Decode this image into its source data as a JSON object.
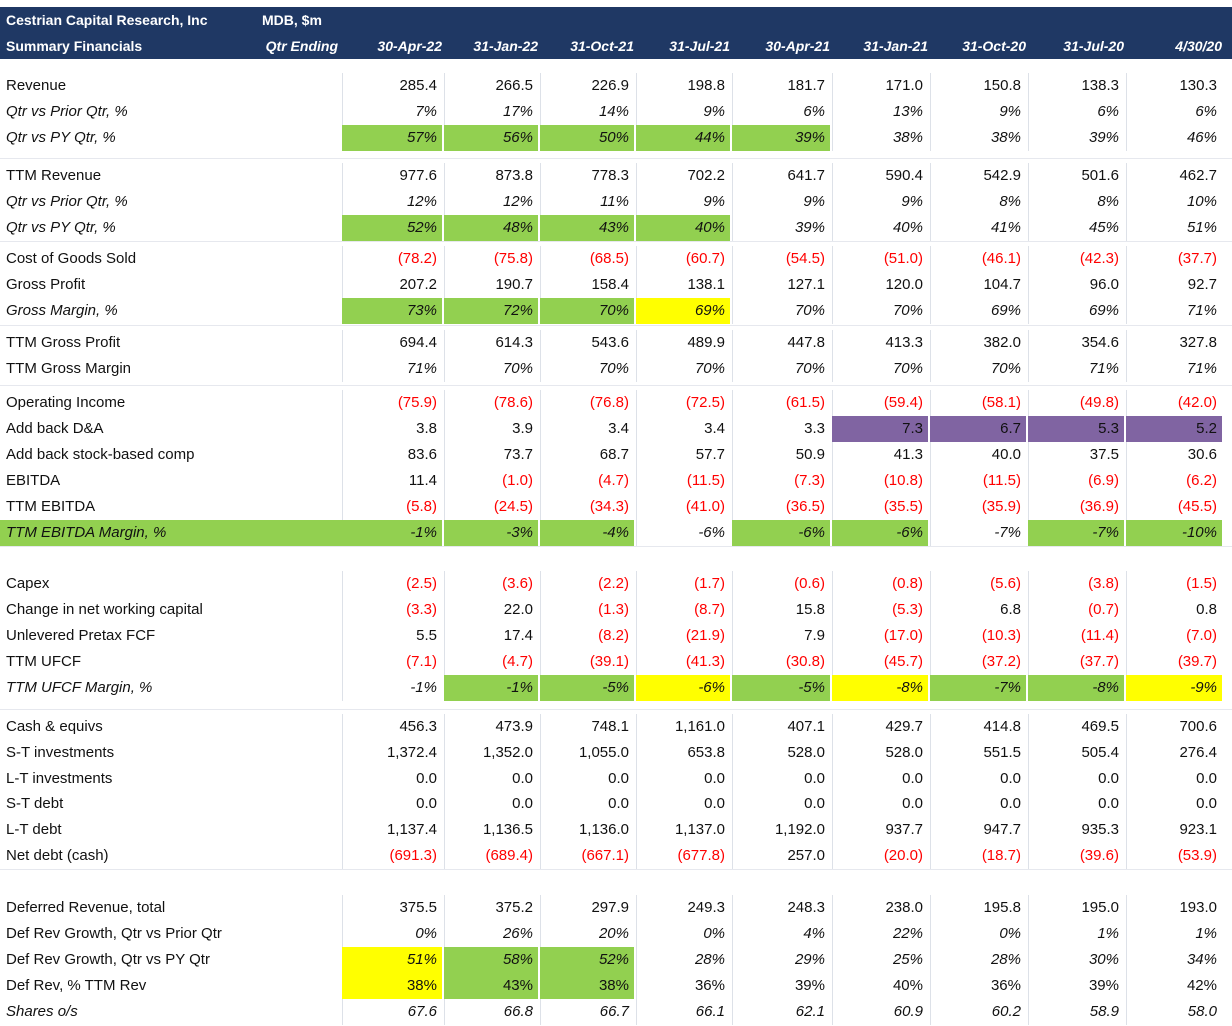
{
  "header": {
    "company": "Cestrian Capital Research, Inc",
    "units": "MDB, $m",
    "subtitle": "Summary Financials",
    "qtr_label": "Qtr Ending",
    "periods": [
      "30-Apr-22",
      "31-Jan-22",
      "31-Oct-21",
      "31-Jul-21",
      "30-Apr-21",
      "31-Jan-21",
      "31-Oct-20",
      "31-Jul-20",
      "4/30/20"
    ]
  },
  "colors": {
    "header_bg": "#1f3864",
    "green": "#92d050",
    "yellow": "#ffff00",
    "purple": "#8064a2",
    "negative": "#ff0000"
  },
  "rows": [
    {
      "label": "Revenue",
      "values": [
        "285.4",
        "266.5",
        "226.9",
        "198.8",
        "181.7",
        "171.0",
        "150.8",
        "138.3",
        "130.3"
      ]
    },
    {
      "label": "Qtr vs Prior Qtr, %",
      "italic": true,
      "values": [
        "7%",
        "17%",
        "14%",
        "9%",
        "6%",
        "13%",
        "9%",
        "6%",
        "6%"
      ]
    },
    {
      "label": "Qtr vs PY Qtr, %",
      "italic": true,
      "values": [
        "57%",
        "56%",
        "50%",
        "44%",
        "39%",
        "38%",
        "38%",
        "39%",
        "46%"
      ],
      "fills": [
        "green",
        "green",
        "green",
        "green",
        "green",
        "",
        "",
        "",
        ""
      ]
    },
    {
      "label": "TTM Revenue",
      "values": [
        "977.6",
        "873.8",
        "778.3",
        "702.2",
        "641.7",
        "590.4",
        "542.9",
        "501.6",
        "462.7"
      ]
    },
    {
      "label": "Qtr vs Prior Qtr, %",
      "italic": true,
      "values": [
        "12%",
        "12%",
        "11%",
        "9%",
        "9%",
        "9%",
        "8%",
        "8%",
        "10%"
      ]
    },
    {
      "label": "Qtr vs PY Qtr, %",
      "italic": true,
      "values": [
        "52%",
        "48%",
        "43%",
        "40%",
        "39%",
        "40%",
        "41%",
        "45%",
        "51%"
      ],
      "fills": [
        "green",
        "green",
        "green",
        "green",
        "",
        "",
        "",
        "",
        ""
      ]
    },
    {
      "label": "Cost of Goods Sold",
      "values": [
        "(78.2)",
        "(75.8)",
        "(68.5)",
        "(60.7)",
        "(54.5)",
        "(51.0)",
        "(46.1)",
        "(42.3)",
        "(37.7)"
      ]
    },
    {
      "label": "Gross Profit",
      "values": [
        "207.2",
        "190.7",
        "158.4",
        "138.1",
        "127.1",
        "120.0",
        "104.7",
        "96.0",
        "92.7"
      ]
    },
    {
      "label": "Gross Margin, %",
      "italic": true,
      "values": [
        "73%",
        "72%",
        "70%",
        "69%",
        "70%",
        "70%",
        "69%",
        "69%",
        "71%"
      ],
      "fills": [
        "green",
        "green",
        "green",
        "yellow",
        "",
        "",
        "",
        "",
        ""
      ]
    },
    {
      "label": "TTM Gross Profit",
      "values": [
        "694.4",
        "614.3",
        "543.6",
        "489.9",
        "447.8",
        "413.3",
        "382.0",
        "354.6",
        "327.8"
      ]
    },
    {
      "label": "TTM Gross Margin",
      "values": [
        "71%",
        "70%",
        "70%",
        "70%",
        "70%",
        "70%",
        "70%",
        "71%",
        "71%"
      ],
      "italic_values": true
    },
    {
      "label": "Operating Income",
      "values": [
        "(75.9)",
        "(78.6)",
        "(76.8)",
        "(72.5)",
        "(61.5)",
        "(59.4)",
        "(58.1)",
        "(49.8)",
        "(42.0)"
      ]
    },
    {
      "label": "Add back D&A",
      "values": [
        "3.8",
        "3.9",
        "3.4",
        "3.4",
        "3.3",
        "7.3",
        "6.7",
        "5.3",
        "5.2"
      ],
      "fills": [
        "",
        "",
        "",
        "",
        "",
        "purple",
        "purple",
        "purple",
        "purple"
      ]
    },
    {
      "label": "Add back stock-based comp",
      "values": [
        "83.6",
        "73.7",
        "68.7",
        "57.7",
        "50.9",
        "41.3",
        "40.0",
        "37.5",
        "30.6"
      ]
    },
    {
      "label": "EBITDA",
      "values": [
        "11.4",
        "(1.0)",
        "(4.7)",
        "(11.5)",
        "(7.3)",
        "(10.8)",
        "(11.5)",
        "(6.9)",
        "(6.2)"
      ]
    },
    {
      "label": "TTM EBITDA",
      "values": [
        "(5.8)",
        "(24.5)",
        "(34.3)",
        "(41.0)",
        "(36.5)",
        "(35.5)",
        "(35.9)",
        "(36.9)",
        "(45.5)"
      ]
    },
    {
      "label": "TTM EBITDA Margin, %",
      "italic": true,
      "values": [
        "-1%",
        "-3%",
        "-4%",
        "-6%",
        "-6%",
        "-6%",
        "-7%",
        "-7%",
        "-10%"
      ],
      "fills": [
        "green",
        "green",
        "green",
        "",
        "green",
        "green",
        "",
        "green",
        "green"
      ],
      "label_fill": "green"
    },
    {
      "label": "Capex",
      "values": [
        "(2.5)",
        "(3.6)",
        "(2.2)",
        "(1.7)",
        "(0.6)",
        "(0.8)",
        "(5.6)",
        "(3.8)",
        "(1.5)"
      ]
    },
    {
      "label": "Change in net working capital",
      "values": [
        "(3.3)",
        "22.0",
        "(1.3)",
        "(8.7)",
        "15.8",
        "(5.3)",
        "6.8",
        "(0.7)",
        "0.8"
      ]
    },
    {
      "label": "Unlevered Pretax FCF",
      "values": [
        "5.5",
        "17.4",
        "(8.2)",
        "(21.9)",
        "7.9",
        "(17.0)",
        "(10.3)",
        "(11.4)",
        "(7.0)"
      ]
    },
    {
      "label": "TTM UFCF",
      "values": [
        "(7.1)",
        "(4.7)",
        "(39.1)",
        "(41.3)",
        "(30.8)",
        "(45.7)",
        "(37.2)",
        "(37.7)",
        "(39.7)"
      ]
    },
    {
      "label": "TTM UFCF Margin, %",
      "italic": true,
      "values": [
        "-1%",
        "-1%",
        "-5%",
        "-6%",
        "-5%",
        "-8%",
        "-7%",
        "-8%",
        "-9%"
      ],
      "fills": [
        "",
        "green",
        "green",
        "yellow",
        "green",
        "yellow",
        "green",
        "green",
        "yellow"
      ]
    },
    {
      "label": "Cash & equivs",
      "values": [
        "456.3",
        "473.9",
        "748.1",
        "1,161.0",
        "407.1",
        "429.7",
        "414.8",
        "469.5",
        "700.6"
      ]
    },
    {
      "label": "S-T investments",
      "values": [
        "1,372.4",
        "1,352.0",
        "1,055.0",
        "653.8",
        "528.0",
        "528.0",
        "551.5",
        "505.4",
        "276.4"
      ]
    },
    {
      "label": "L-T investments",
      "values": [
        "0.0",
        "0.0",
        "0.0",
        "0.0",
        "0.0",
        "0.0",
        "0.0",
        "0.0",
        "0.0"
      ]
    },
    {
      "label": "S-T debt",
      "values": [
        "0.0",
        "0.0",
        "0.0",
        "0.0",
        "0.0",
        "0.0",
        "0.0",
        "0.0",
        "0.0"
      ]
    },
    {
      "label": "L-T debt",
      "values": [
        "1,137.4",
        "1,136.5",
        "1,136.0",
        "1,137.0",
        "1,192.0",
        "937.7",
        "947.7",
        "935.3",
        "923.1"
      ]
    },
    {
      "label": "Net debt (cash)",
      "values": [
        "(691.3)",
        "(689.4)",
        "(667.1)",
        "(677.8)",
        "257.0",
        "(20.0)",
        "(18.7)",
        "(39.6)",
        "(53.9)"
      ]
    },
    {
      "label": "Deferred Revenue, total",
      "values": [
        "375.5",
        "375.2",
        "297.9",
        "249.3",
        "248.3",
        "238.0",
        "195.8",
        "195.0",
        "193.0"
      ]
    },
    {
      "label": "Def Rev Growth, Qtr vs Prior Qtr",
      "values": [
        "0%",
        "26%",
        "20%",
        "0%",
        "4%",
        "22%",
        "0%",
        "1%",
        "1%"
      ],
      "italic_values": true
    },
    {
      "label": "Def Rev Growth, Qtr vs PY Qtr",
      "values": [
        "51%",
        "58%",
        "52%",
        "28%",
        "29%",
        "25%",
        "28%",
        "30%",
        "34%"
      ],
      "fills": [
        "yellow",
        "green",
        "green",
        "",
        "",
        "",
        "",
        "",
        ""
      ],
      "italic_values": true
    },
    {
      "label": "Def Rev, % TTM Rev",
      "values": [
        "38%",
        "43%",
        "38%",
        "36%",
        "39%",
        "40%",
        "36%",
        "39%",
        "42%"
      ],
      "fills": [
        "yellow",
        "green",
        "green",
        "",
        "",
        "",
        "",
        "",
        ""
      ]
    },
    {
      "label": "Shares o/s",
      "italic": true,
      "values": [
        "67.6",
        "66.8",
        "66.7",
        "66.1",
        "62.1",
        "60.9",
        "60.2",
        "58.9",
        "58.0"
      ]
    }
  ]
}
